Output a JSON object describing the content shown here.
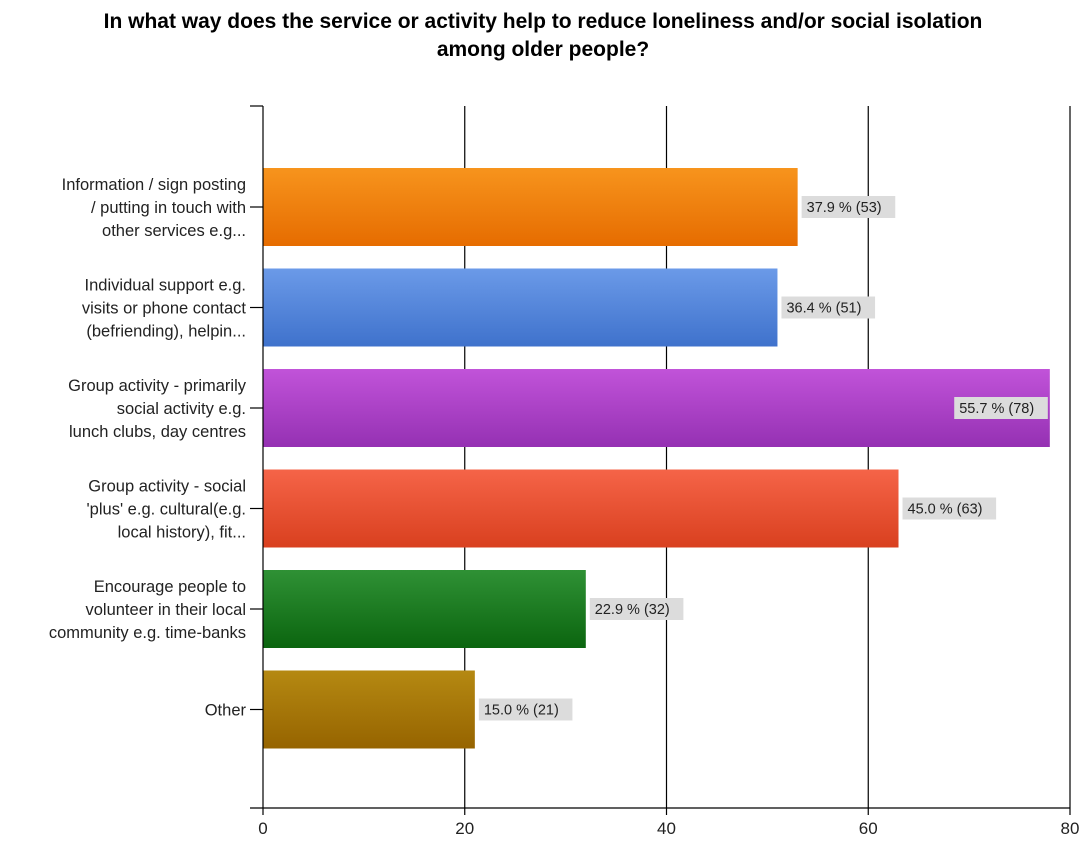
{
  "chart_data": {
    "type": "bar",
    "orientation": "horizontal",
    "title_lines": [
      "In what way does the service or activity help to reduce loneliness and/or social isolation",
      "among older people?"
    ],
    "categories": [
      [
        "Information / sign posting",
        "/ putting in touch with",
        "other services e.g..."
      ],
      [
        "Individual support e.g.",
        "visits or phone contact",
        "(befriending), helpin..."
      ],
      [
        "Group activity - primarily",
        "social activity e.g.",
        "lunch clubs, day centres"
      ],
      [
        "Group activity - social",
        "'plus' e.g. cultural(e.g.",
        "local history), fit..."
      ],
      [
        "Encourage people to",
        "volunteer in their local",
        "community e.g. time-banks"
      ],
      [
        "Other"
      ]
    ],
    "values": [
      53,
      51,
      78,
      63,
      32,
      21
    ],
    "data_labels": [
      "37.9 % (53)",
      "36.4 % (51)",
      "55.7 % (78)",
      "45.0 % (63)",
      "22.9 % (32)",
      "15.0 % (21)"
    ],
    "bar_colors": [
      [
        "#f7941d",
        "#e66c00"
      ],
      [
        "#6b9ae8",
        "#3f72cc"
      ],
      [
        "#c153d9",
        "#9531b3"
      ],
      [
        "#f56448",
        "#d9401f"
      ],
      [
        "#2f9135",
        "#0b650f"
      ],
      [
        "#b58912",
        "#966400"
      ]
    ],
    "xlim": [
      0,
      80
    ],
    "xticks": [
      "0",
      "20",
      "40",
      "60",
      "80"
    ],
    "grid": true,
    "legend": "none"
  }
}
